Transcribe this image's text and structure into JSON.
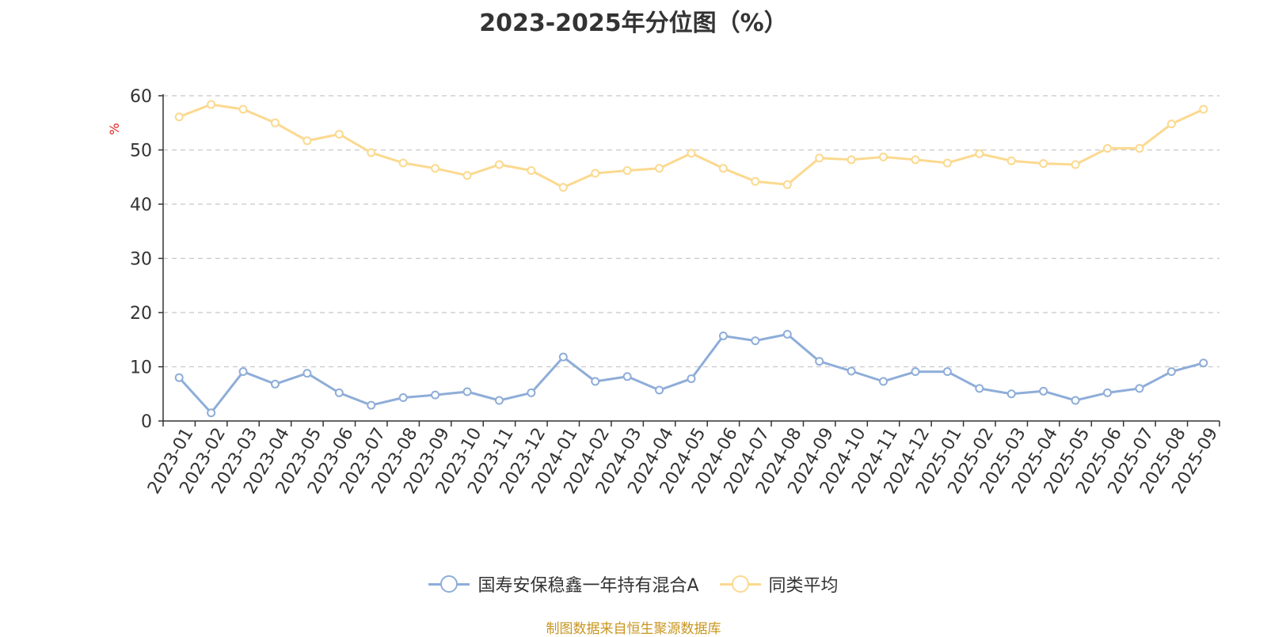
{
  "chart_data": {
    "type": "line",
    "title": "2023-2025年分位图（%）",
    "ylabel": "%",
    "xlabel": "",
    "ylim": [
      0,
      60
    ],
    "yticks": [
      0,
      10,
      20,
      30,
      40,
      50,
      60
    ],
    "grid": true,
    "legend_position": "bottom",
    "categories": [
      "2023-01",
      "2023-02",
      "2023-03",
      "2023-04",
      "2023-05",
      "2023-06",
      "2023-07",
      "2023-08",
      "2023-09",
      "2023-10",
      "2023-11",
      "2023-12",
      "2024-01",
      "2024-02",
      "2024-03",
      "2024-04",
      "2024-05",
      "2024-06",
      "2024-07",
      "2024-08",
      "2024-09",
      "2024-10",
      "2024-11",
      "2024-12",
      "2025-01",
      "2025-02",
      "2025-03",
      "2025-04",
      "2025-05",
      "2025-06",
      "2025-07",
      "2025-08",
      "2025-09"
    ],
    "series": [
      {
        "name": "国寿安保稳鑫一年持有混合A",
        "color": "#8eadd8",
        "values": [
          8.0,
          1.5,
          9.1,
          6.8,
          8.8,
          5.2,
          2.9,
          4.3,
          4.8,
          5.4,
          3.8,
          5.2,
          11.8,
          7.3,
          8.2,
          5.7,
          7.8,
          15.7,
          14.8,
          16.0,
          11.0,
          9.2,
          7.3,
          9.1,
          9.1,
          6.0,
          5.0,
          5.5,
          3.8,
          5.2,
          6.0,
          9.1,
          10.7
        ]
      },
      {
        "name": "同类平均",
        "color": "#fbd98f",
        "values": [
          56.1,
          58.4,
          57.5,
          55.0,
          51.7,
          52.9,
          49.5,
          47.6,
          46.6,
          45.3,
          47.3,
          46.2,
          43.1,
          45.7,
          46.2,
          46.6,
          49.4,
          46.6,
          44.2,
          43.6,
          48.5,
          48.2,
          48.7,
          48.2,
          47.6,
          49.3,
          48.0,
          47.5,
          47.3,
          50.3,
          50.3,
          54.8,
          57.5
        ]
      }
    ]
  },
  "footer": "制图数据来自恒生聚源数据库"
}
